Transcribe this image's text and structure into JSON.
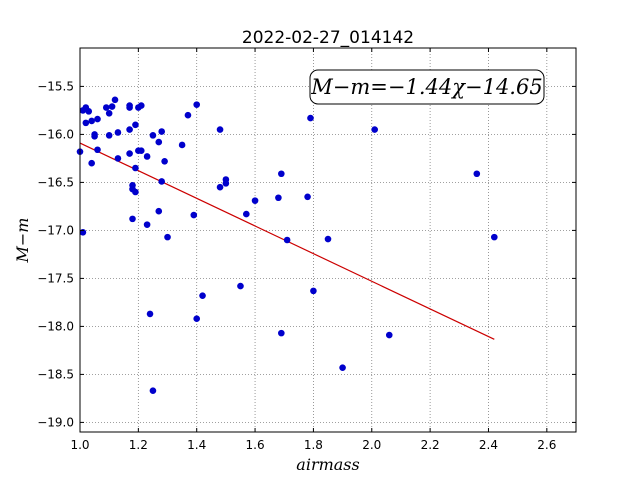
{
  "chart_data": {
    "type": "scatter",
    "title": "2022-02-27_014142",
    "xlabel": "airmass",
    "ylabel": "M−m",
    "annotation": "M−m=−1.44χ−14.65",
    "xlim": [
      1.0,
      2.7
    ],
    "ylim": [
      -19.1,
      -15.1
    ],
    "y_inverted": false,
    "grid": true,
    "xticks": [
      1.0,
      1.2,
      1.4,
      1.6,
      1.8,
      2.0,
      2.2,
      2.4,
      2.6
    ],
    "yticks": [
      -15.5,
      -16.0,
      -16.5,
      -17.0,
      -17.5,
      -18.0,
      -18.5,
      -19.0
    ],
    "xtick_labels": [
      "1.0",
      "1.2",
      "1.4",
      "1.6",
      "1.8",
      "2.0",
      "2.2",
      "2.4",
      "2.6"
    ],
    "ytick_labels": [
      "−15.5",
      "−16.0",
      "−16.5",
      "−17.0",
      "−17.5",
      "−18.0",
      "−18.5",
      "−19.0"
    ],
    "colors": {
      "points": "#0000cc",
      "fit_line": "#cc0000",
      "grid": "#808080"
    },
    "series": [
      {
        "points": [
          [
            1.0,
            -16.18
          ],
          [
            1.01,
            -17.02
          ],
          [
            1.01,
            -15.75
          ],
          [
            1.02,
            -15.72
          ],
          [
            1.02,
            -15.88
          ],
          [
            1.03,
            -15.76
          ],
          [
            1.04,
            -15.86
          ],
          [
            1.04,
            -16.3
          ],
          [
            1.05,
            -16.02
          ],
          [
            1.05,
            -16.0
          ],
          [
            1.06,
            -15.84
          ],
          [
            1.06,
            -16.16
          ],
          [
            1.09,
            -15.72
          ],
          [
            1.1,
            -16.01
          ],
          [
            1.1,
            -15.78
          ],
          [
            1.11,
            -15.71
          ],
          [
            1.12,
            -15.64
          ],
          [
            1.13,
            -15.98
          ],
          [
            1.13,
            -16.25
          ],
          [
            1.17,
            -15.72
          ],
          [
            1.17,
            -15.7
          ],
          [
            1.17,
            -16.2
          ],
          [
            1.17,
            -15.95
          ],
          [
            1.18,
            -16.53
          ],
          [
            1.18,
            -16.57
          ],
          [
            1.18,
            -16.88
          ],
          [
            1.19,
            -15.9
          ],
          [
            1.19,
            -16.6
          ],
          [
            1.19,
            -16.35
          ],
          [
            1.2,
            -16.17
          ],
          [
            1.2,
            -15.72
          ],
          [
            1.21,
            -15.7
          ],
          [
            1.21,
            -16.17
          ],
          [
            1.23,
            -16.23
          ],
          [
            1.23,
            -16.94
          ],
          [
            1.24,
            -17.87
          ],
          [
            1.25,
            -16.01
          ],
          [
            1.25,
            -18.67
          ],
          [
            1.27,
            -16.08
          ],
          [
            1.27,
            -16.8
          ],
          [
            1.28,
            -15.97
          ],
          [
            1.28,
            -16.49
          ],
          [
            1.29,
            -16.28
          ],
          [
            1.3,
            -17.07
          ],
          [
            1.35,
            -16.11
          ],
          [
            1.37,
            -15.8
          ],
          [
            1.39,
            -16.84
          ],
          [
            1.4,
            -15.69
          ],
          [
            1.4,
            -17.92
          ],
          [
            1.42,
            -17.68
          ],
          [
            1.48,
            -15.95
          ],
          [
            1.48,
            -16.55
          ],
          [
            1.5,
            -16.47
          ],
          [
            1.5,
            -16.51
          ],
          [
            1.55,
            -17.58
          ],
          [
            1.57,
            -16.83
          ],
          [
            1.6,
            -16.69
          ],
          [
            1.68,
            -16.66
          ],
          [
            1.69,
            -16.41
          ],
          [
            1.69,
            -18.07
          ],
          [
            1.71,
            -17.1
          ],
          [
            1.78,
            -16.65
          ],
          [
            1.79,
            -15.83
          ],
          [
            1.8,
            -17.63
          ],
          [
            1.85,
            -17.09
          ],
          [
            1.9,
            -18.43
          ],
          [
            2.01,
            -15.95
          ],
          [
            2.06,
            -18.09
          ],
          [
            2.36,
            -16.41
          ],
          [
            2.42,
            -17.07
          ]
        ]
      }
    ],
    "fit_line": {
      "x": [
        1.0,
        2.42
      ],
      "y": [
        -16.09,
        -18.1348
      ]
    }
  }
}
